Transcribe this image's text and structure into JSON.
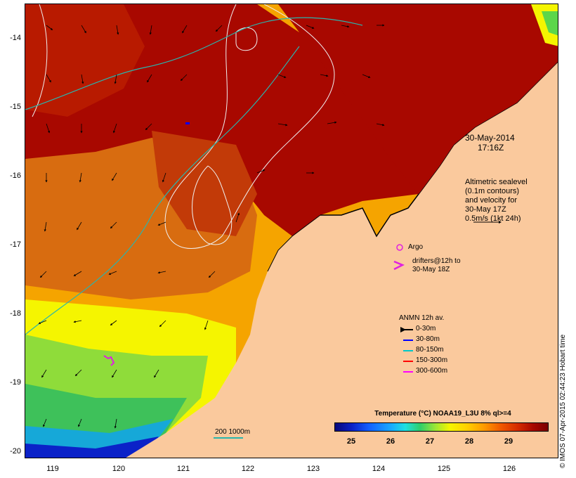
{
  "map": {
    "lat_ticks": [
      "-14",
      "-15",
      "-16",
      "-17",
      "-18",
      "-19",
      "-20"
    ],
    "lon_ticks": [
      "119",
      "120",
      "121",
      "122",
      "123",
      "124",
      "125",
      "126"
    ]
  },
  "annotations": {
    "date": "30-May-2014",
    "time": "17:16Z",
    "altimetry_lines": [
      "Altimetric sealevel",
      "(0.1m contours)",
      "and velocity for",
      "30-May 17Z",
      "0.5m/s (1kt 24h)"
    ],
    "argo_label": "Argo",
    "drifters_lines": [
      "drifters@12h to",
      "30-May 18Z"
    ],
    "depth_contours_label": "200  1000m"
  },
  "legend": {
    "title": "ANMN 12h av.",
    "items": [
      {
        "label": "0-30m",
        "color": "#000000"
      },
      {
        "label": "30-80m",
        "color": "#0000ff"
      },
      {
        "label": "80-150m",
        "color": "#00c8c8"
      },
      {
        "label": "150-300m",
        "color": "#ff0000"
      },
      {
        "label": "300-600m",
        "color": "#ff00ff"
      }
    ]
  },
  "colorbar": {
    "title": "Temperature (°C) NOAA19_L3U 8% ql>=4",
    "ticks": [
      "25",
      "26",
      "27",
      "28",
      "29"
    ]
  },
  "credit": "© IMOS 07-Apr-2015 02:44:23 Hobart time",
  "colors": {
    "land": "#fac99d",
    "sst_hot": "#a80800",
    "sst_warm": "#e05000",
    "sst_mid": "#f5a400",
    "sst_cool": "#f5f500",
    "sst_green": "#5cd64a",
    "sst_blue": "#0b22c8",
    "contour_white": "#f0f0f0",
    "contour_cyan": "#29b5ad"
  }
}
